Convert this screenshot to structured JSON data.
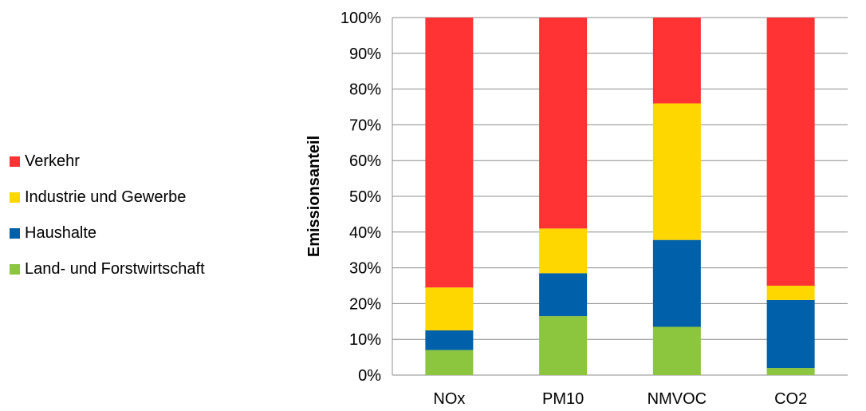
{
  "chart_data": {
    "type": "bar",
    "stacked": true,
    "percent": true,
    "title": "",
    "xlabel": "",
    "ylabel": "Emissionsanteil",
    "ylim": [
      0,
      100
    ],
    "yticks": [
      "0%",
      "10%",
      "20%",
      "30%",
      "40%",
      "50%",
      "60%",
      "70%",
      "80%",
      "90%",
      "100%"
    ],
    "categories": [
      "NOx",
      "PM10",
      "NMVOC",
      "CO2"
    ],
    "grid": true,
    "legend_position": "left",
    "series": [
      {
        "name": "Land- und Forstwirtschaft",
        "color": "#8CC63F",
        "values": [
          7,
          16.5,
          13.5,
          2
        ]
      },
      {
        "name": "Haushalte",
        "color": "#0061AA",
        "values": [
          5.5,
          12,
          24.3,
          19
        ]
      },
      {
        "name": "Industrie und Gewerbe",
        "color": "#FFD700",
        "values": [
          12,
          12.5,
          38.2,
          4
        ]
      },
      {
        "name": "Verkehr",
        "color": "#FF3333",
        "values": [
          75.5,
          59,
          24,
          75
        ]
      }
    ],
    "legend_order": [
      "Verkehr",
      "Industrie und Gewerbe",
      "Haushalte",
      "Land- und Forstwirtschaft"
    ]
  }
}
